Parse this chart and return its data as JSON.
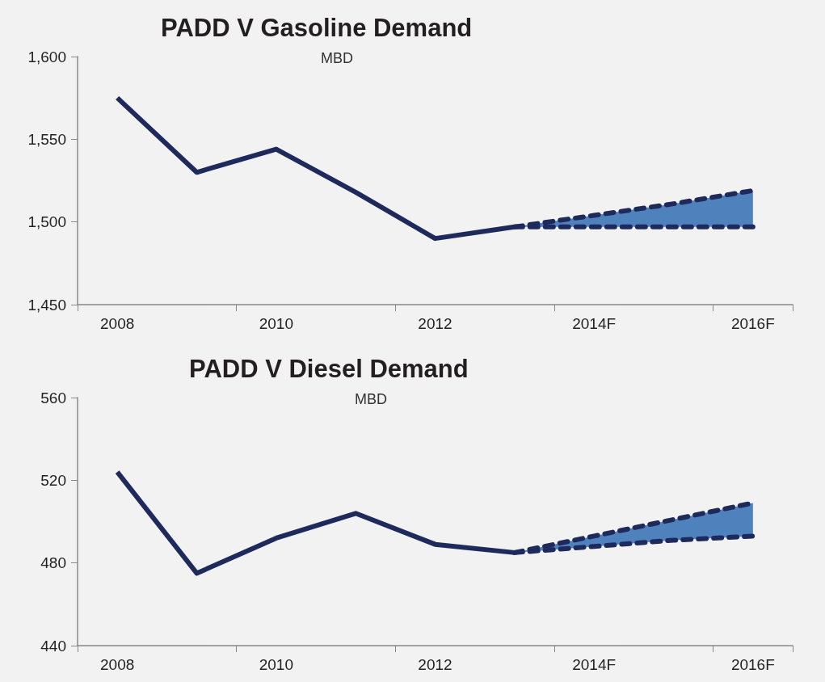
{
  "chart_data": [
    {
      "type": "line",
      "title": "PADD V Gasoline Demand",
      "subtitle": "MBD",
      "categories": [
        "2008",
        null,
        "2010",
        null,
        "2012",
        null,
        "2014F",
        null,
        "2016F"
      ],
      "ylim": [
        1450,
        1600
      ],
      "yticks": [
        {
          "value": 1450,
          "label": "1,450"
        },
        {
          "value": 1500,
          "label": "1,500"
        },
        {
          "value": 1550,
          "label": "1,550"
        },
        {
          "value": 1600,
          "label": "1,600"
        }
      ],
      "grid": false,
      "marker": "none",
      "series": [
        {
          "color": "#1f2a5c",
          "line_style": "solid",
          "values": [
            1575,
            1530,
            1544,
            1518,
            1490,
            1497,
            null,
            null,
            null
          ]
        },
        {
          "color": "#1f2a5c",
          "line_style": "dashed",
          "values": [
            null,
            null,
            null,
            null,
            null,
            1497,
            1504,
            1511,
            1519
          ],
          "lower": [
            null,
            null,
            null,
            null,
            null,
            1497,
            1497,
            1497,
            1497
          ],
          "upper": [
            null,
            null,
            null,
            null,
            null,
            1497,
            1504,
            1511,
            1519
          ]
        },
        {
          "color": "#1f2a5c",
          "line_style": "dashed",
          "values": [
            null,
            null,
            null,
            null,
            null,
            1497,
            1497,
            1497,
            1497
          ]
        }
      ]
    },
    {
      "type": "line",
      "title": "PADD V Diesel Demand",
      "subtitle": "MBD",
      "categories": [
        "2008",
        null,
        "2010",
        null,
        "2012",
        null,
        "2014F",
        null,
        "2016F"
      ],
      "ylim": [
        440,
        560
      ],
      "yticks": [
        440,
        480,
        520,
        560
      ],
      "grid": false,
      "marker": "none",
      "series": [
        {
          "color": "#1f2a5c",
          "line_style": "solid",
          "values": [
            524,
            475,
            492,
            504,
            489,
            485,
            null,
            null,
            null
          ]
        },
        {
          "color": "#1f2a5c",
          "line_style": "dashed",
          "values": [
            null,
            null,
            null,
            null,
            null,
            485,
            493,
            501,
            509
          ],
          "lower": [
            null,
            null,
            null,
            null,
            null,
            485,
            488,
            491,
            493
          ],
          "upper": [
            null,
            null,
            null,
            null,
            null,
            485,
            493,
            501,
            509
          ]
        },
        {
          "color": "#1f2a5c",
          "line_style": "dashed",
          "values": [
            null,
            null,
            null,
            null,
            null,
            485,
            488,
            491,
            493
          ]
        }
      ]
    }
  ]
}
